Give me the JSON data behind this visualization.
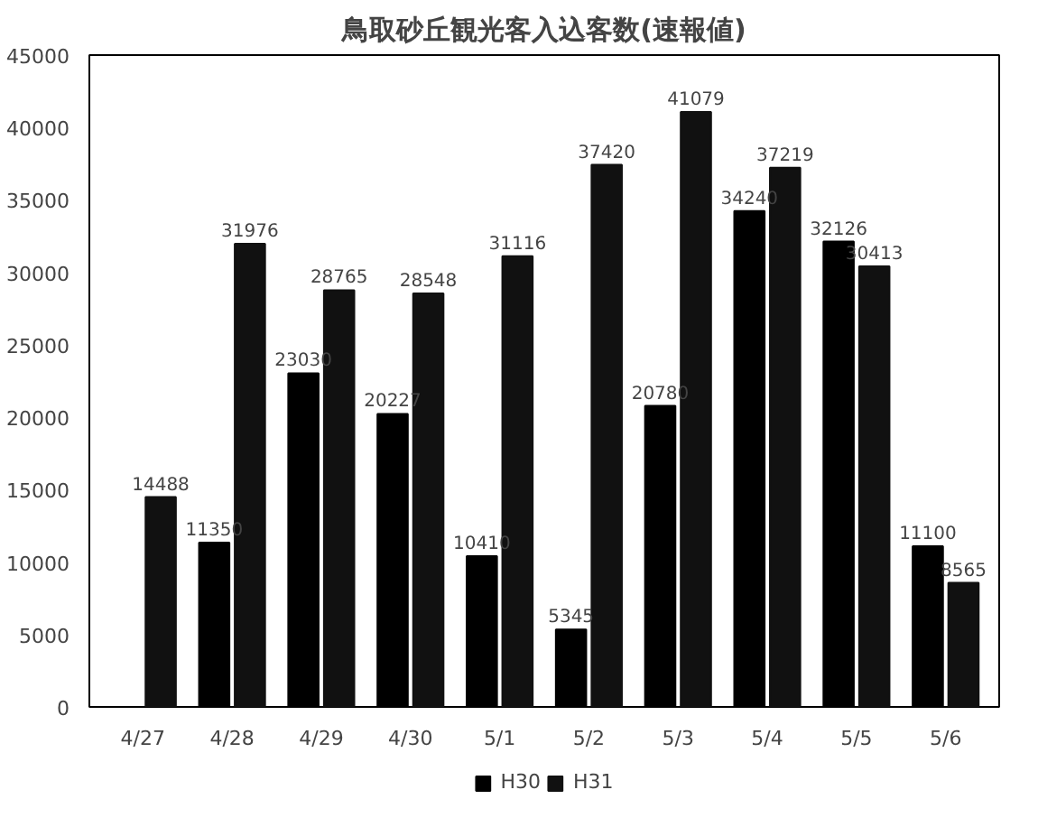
{
  "chart_data": {
    "type": "bar",
    "title": "鳥取砂丘観光客入込客数(速報値)",
    "categories": [
      "4/27",
      "4/28",
      "4/29",
      "4/30",
      "5/1",
      "5/2",
      "5/3",
      "5/4",
      "5/5",
      "5/6"
    ],
    "series": [
      {
        "name": "H30",
        "color": "#000000",
        "values": [
          null,
          11350,
          23030,
          20227,
          10410,
          5345,
          20780,
          34240,
          32126,
          11100
        ]
      },
      {
        "name": "H31",
        "color": "#111111",
        "values": [
          14488,
          31976,
          28765,
          28548,
          31116,
          37420,
          41079,
          37219,
          30413,
          8565
        ]
      }
    ],
    "ylim": [
      0,
      45000
    ],
    "yticks": [
      0,
      5000,
      10000,
      15000,
      20000,
      25000,
      30000,
      35000,
      40000,
      45000
    ],
    "grid": false,
    "legend": "bottom",
    "data_labels": true
  }
}
